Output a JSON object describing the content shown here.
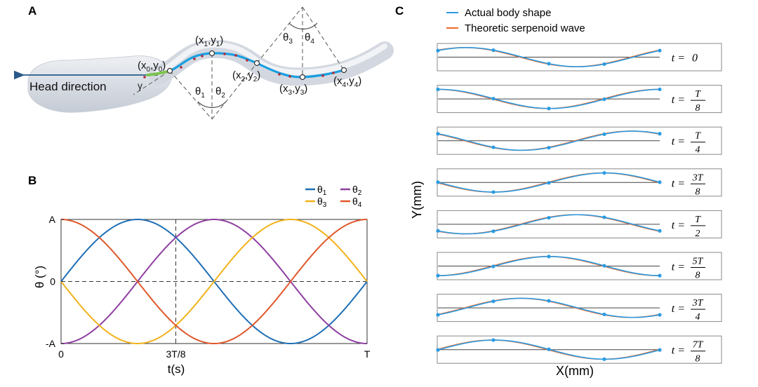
{
  "panels": {
    "A": {
      "letter": "A",
      "head_direction": "Head direction",
      "gamma": "γ",
      "points": [
        "(x",
        "0",
        ",y",
        "0",
        ")"
      ],
      "point_labels": [
        {
          "x": "x",
          "xs": "0",
          "y": "y",
          "ys": "0"
        },
        {
          "x": "x",
          "xs": "1",
          "y": "y",
          "ys": "1"
        },
        {
          "x": "x",
          "xs": "2",
          "y": "y",
          "ys": "2"
        },
        {
          "x": "x",
          "xs": "3",
          "y": "y",
          "ys": "3"
        },
        {
          "x": "x",
          "xs": "4",
          "y": "y",
          "ys": "4"
        }
      ],
      "angles": [
        {
          "sym": "θ",
          "sub": "1"
        },
        {
          "sym": "θ",
          "sub": "2"
        },
        {
          "sym": "θ",
          "sub": "3"
        },
        {
          "sym": "θ",
          "sub": "4"
        }
      ],
      "colors": {
        "body_curve": "#1a9fe0",
        "head_segment": "#7cc44a",
        "arrow": "#2a5a8a"
      }
    },
    "B": {
      "letter": "B"
    },
    "C": {
      "letter": "C"
    }
  },
  "chart_data": [
    {
      "panel": "B",
      "type": "line",
      "xlabel": "t(s)",
      "ylabel": "θ (°)",
      "x_ticks": [
        "0",
        "3T/8",
        "T"
      ],
      "y_ticks": [
        "A",
        "0",
        "-A"
      ],
      "x": [
        0,
        0.125,
        0.25,
        0.375,
        0.5,
        0.625,
        0.75,
        0.875,
        1
      ],
      "xlim": [
        0,
        1
      ],
      "ylim": [
        -1,
        1
      ],
      "reference_lines": {
        "vertical_at": 0.375,
        "horizontal_at": 0
      },
      "legend_position": "top-right",
      "series": [
        {
          "name": "θ1",
          "label_sym": "θ",
          "label_sub": "1",
          "color": "#1f6fb5",
          "phase": 0,
          "values": [
            0,
            0.707,
            1,
            0.707,
            0,
            -0.707,
            -1,
            -0.707,
            0
          ]
        },
        {
          "name": "θ2",
          "label_sym": "θ",
          "label_sub": "2",
          "color": "#8e3fa0",
          "phase": 0.25,
          "values": [
            -1,
            -0.707,
            0,
            0.707,
            1,
            0.707,
            0,
            -0.707,
            -1
          ]
        },
        {
          "name": "θ3",
          "label_sym": "θ",
          "label_sub": "3",
          "color": "#f2b21b",
          "phase": 0.5,
          "values": [
            0,
            -0.707,
            -1,
            -0.707,
            0,
            0.707,
            1,
            0.707,
            0
          ]
        },
        {
          "name": "θ4",
          "label_sym": "θ",
          "label_sub": "4",
          "color": "#e0582b",
          "phase": 0.75,
          "values": [
            1,
            0.707,
            0,
            -0.707,
            -1,
            -0.707,
            0,
            0.707,
            1
          ]
        }
      ]
    },
    {
      "panel": "C",
      "type": "line",
      "xlabel": "X(mm)",
      "ylabel": "Y(mm)",
      "legend_position": "top-left",
      "series": [
        {
          "name": "Actual body shape",
          "color": "#2b9be2"
        },
        {
          "name": "Theoretic serpenoid wave",
          "color": "#ef6a2b"
        }
      ],
      "rows": [
        {
          "time": "t = 0",
          "t_num": "",
          "t_den": "",
          "t_plain": "0",
          "phase": 0
        },
        {
          "time": "t = T/8",
          "t_num": "T",
          "t_den": "8",
          "t_plain": "",
          "phase": 0.125
        },
        {
          "time": "t = T/4",
          "t_num": "T",
          "t_den": "4",
          "t_plain": "",
          "phase": 0.25
        },
        {
          "time": "t = 3T/8",
          "t_num": "3T",
          "t_den": "8",
          "t_plain": "",
          "phase": 0.375
        },
        {
          "time": "t = T/2",
          "t_num": "T",
          "t_den": "2",
          "t_plain": "",
          "phase": 0.5
        },
        {
          "time": "t = 5T/8",
          "t_num": "5T",
          "t_den": "8",
          "t_plain": "",
          "phase": 0.625
        },
        {
          "time": "t = 3T/4",
          "t_num": "3T",
          "t_den": "4",
          "t_plain": "",
          "phase": 0.75
        },
        {
          "time": "t = 7T/8",
          "t_num": "7T",
          "t_den": "8",
          "t_plain": "",
          "phase": 0.875
        }
      ]
    }
  ]
}
